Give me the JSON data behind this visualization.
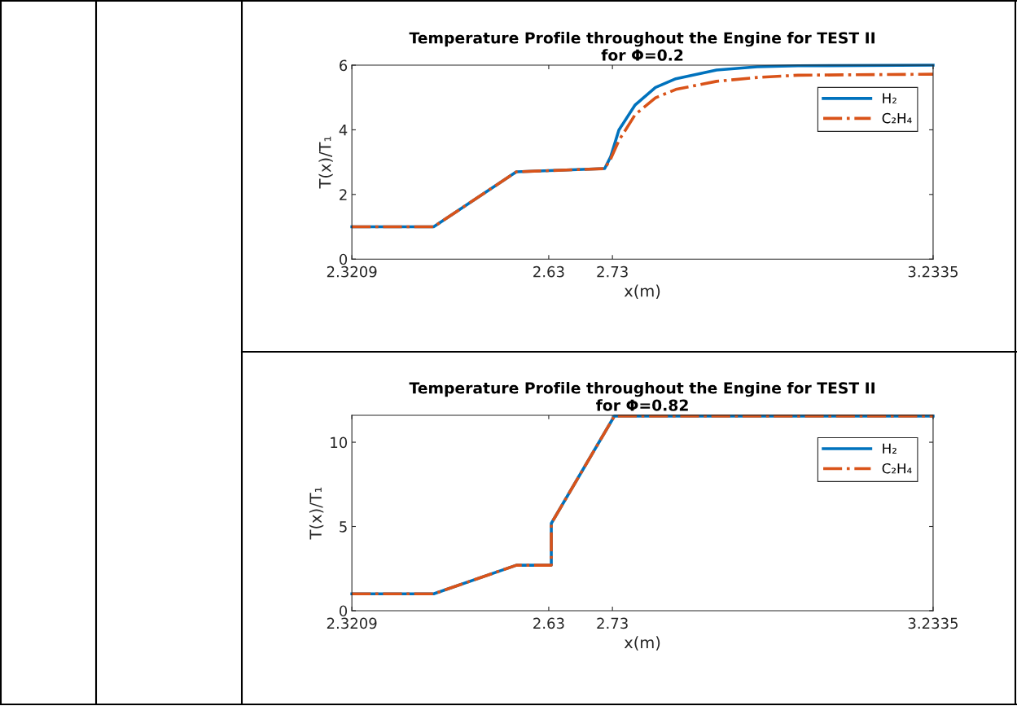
{
  "chart_data": [
    {
      "type": "line",
      "title": "Temperature Profile throughout the Engine for TEST II\nfor Φ=0.2",
      "xlabel": "x(m)",
      "ylabel": "T(x)/T₁",
      "xlim": [
        2.3209,
        3.2335
      ],
      "xticks": [
        2.3209,
        2.63,
        2.73,
        3.2335
      ],
      "ylim": [
        0,
        6
      ],
      "yticks": [
        0,
        2,
        4,
        6
      ],
      "grid": false,
      "legend": "top right",
      "series": [
        {
          "name": "H₂",
          "color": "#0072bd",
          "line_style": "solid",
          "x": [
            2.3209,
            2.4493,
            2.5791,
            2.7178,
            2.7273,
            2.7401,
            2.7657,
            2.7976,
            2.8296,
            2.8935,
            2.9574,
            3.0213,
            3.2335
          ],
          "values": [
            1,
            1,
            2.7,
            2.8,
            3.17,
            3.99,
            4.77,
            5.31,
            5.58,
            5.85,
            5.95,
            5.98,
            6.0
          ]
        },
        {
          "name": "C₂H₄",
          "color": "#d95319",
          "line_style": "dashdot",
          "x": [
            2.3209,
            2.4493,
            2.5791,
            2.7178,
            2.7273,
            2.7401,
            2.7657,
            2.7976,
            2.8296,
            2.8935,
            2.9574,
            3.0213,
            3.2335
          ],
          "values": [
            1,
            1,
            2.7,
            2.8,
            3.1,
            3.67,
            4.47,
            4.99,
            5.25,
            5.5,
            5.62,
            5.69,
            5.72
          ]
        }
      ]
    },
    {
      "type": "line",
      "title": "Temperature Profile throughout the Engine for TEST II\nfor Φ=0.82",
      "xlabel": "x(m)",
      "ylabel": "T(x)/T₁",
      "xlim": [
        2.3209,
        3.2335
      ],
      "xticks": [
        2.3209,
        2.63,
        2.73,
        3.2335
      ],
      "ylim": [
        0,
        11.6
      ],
      "yticks": [
        0,
        5,
        10
      ],
      "grid": false,
      "legend": "top right",
      "series": [
        {
          "name": "H₂",
          "color": "#0072bd",
          "line_style": "solid",
          "x": [
            2.3209,
            2.4493,
            2.5791,
            2.634,
            2.634,
            2.733,
            3.2335
          ],
          "values": [
            1,
            1,
            2.7,
            2.7,
            5.18,
            11.55,
            11.55
          ]
        },
        {
          "name": "C₂H₄",
          "color": "#d95319",
          "line_style": "dashdot",
          "x": [
            2.3209,
            2.4493,
            2.5791,
            2.634,
            2.634,
            2.733,
            3.2335
          ],
          "values": [
            1,
            1,
            2.7,
            2.7,
            5.18,
            11.55,
            11.55
          ]
        }
      ]
    }
  ]
}
